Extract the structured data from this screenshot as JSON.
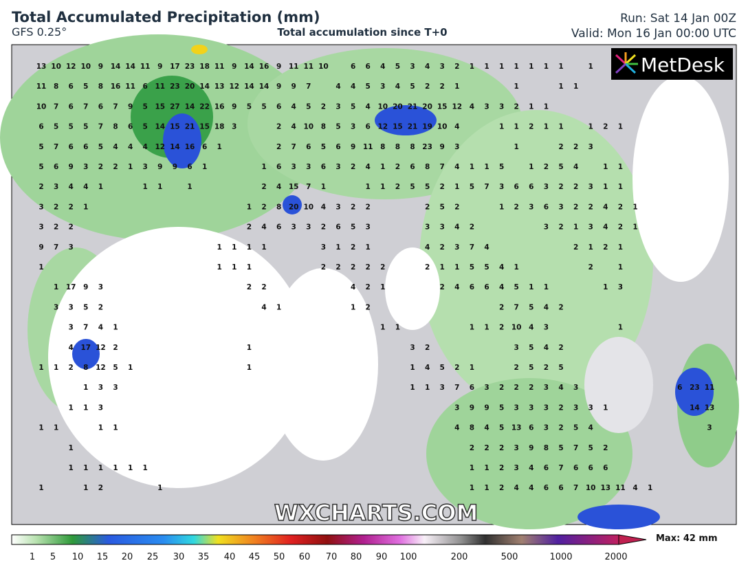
{
  "header": {
    "title": "Total Accumulated Precipitation (mm)",
    "model": "GFS 0.25°",
    "subtitle": "Total accumulation since T+0",
    "run": "Run: Sat 14 Jan 00Z",
    "valid": "Valid: Mon 16 Jan 00:00 UTC"
  },
  "logo": "MetDesk",
  "watermark": "WXCHARTS.COM",
  "grid_values": [
    [
      13,
      10,
      12,
      10,
      9,
      14,
      14,
      11,
      9,
      17,
      23,
      18,
      11,
      9,
      14,
      16,
      9,
      11,
      11,
      10,
      null,
      6,
      6,
      4,
      5,
      3,
      4,
      3,
      2,
      1,
      1,
      1,
      1,
      1,
      1,
      1,
      null,
      1,
      null,
      null,
      null,
      null,
      null,
      null,
      null,
      null
    ],
    [
      11,
      8,
      6,
      5,
      8,
      16,
      11,
      6,
      11,
      23,
      20,
      14,
      13,
      12,
      14,
      14,
      9,
      9,
      7,
      null,
      4,
      4,
      5,
      3,
      4,
      5,
      2,
      2,
      1,
      null,
      null,
      null,
      1,
      null,
      null,
      1,
      1,
      null,
      null,
      null,
      null,
      null,
      null,
      null,
      null,
      null
    ],
    [
      10,
      7,
      6,
      7,
      6,
      7,
      9,
      5,
      15,
      27,
      14,
      22,
      16,
      9,
      5,
      5,
      6,
      4,
      5,
      2,
      3,
      5,
      4,
      10,
      20,
      21,
      20,
      15,
      12,
      4,
      3,
      3,
      2,
      1,
      1,
      null,
      null,
      null,
      null,
      null,
      null,
      null,
      null,
      null,
      null,
      null
    ],
    [
      6,
      5,
      5,
      5,
      7,
      8,
      6,
      5,
      14,
      15,
      21,
      15,
      18,
      3,
      null,
      null,
      2,
      4,
      10,
      8,
      5,
      3,
      6,
      12,
      15,
      21,
      19,
      10,
      4,
      null,
      null,
      1,
      1,
      2,
      1,
      1,
      null,
      1,
      2,
      1,
      null,
      null,
      null,
      null,
      null,
      null
    ],
    [
      5,
      7,
      6,
      6,
      5,
      4,
      4,
      4,
      12,
      14,
      16,
      6,
      1,
      null,
      null,
      null,
      2,
      7,
      6,
      5,
      6,
      9,
      11,
      8,
      8,
      8,
      23,
      9,
      3,
      null,
      null,
      null,
      1,
      null,
      null,
      2,
      2,
      3,
      null,
      null,
      null,
      null,
      null,
      null,
      null,
      null
    ],
    [
      5,
      6,
      9,
      3,
      2,
      2,
      1,
      3,
      9,
      9,
      6,
      1,
      null,
      null,
      null,
      1,
      6,
      3,
      3,
      6,
      3,
      2,
      4,
      1,
      2,
      6,
      8,
      7,
      4,
      1,
      1,
      5,
      null,
      1,
      2,
      5,
      4,
      null,
      1,
      1,
      null,
      null,
      null,
      null,
      null,
      null
    ],
    [
      2,
      3,
      4,
      4,
      1,
      null,
      null,
      1,
      1,
      null,
      1,
      null,
      null,
      null,
      null,
      2,
      4,
      15,
      7,
      1,
      null,
      null,
      1,
      1,
      2,
      5,
      5,
      2,
      1,
      5,
      7,
      3,
      6,
      6,
      3,
      2,
      2,
      3,
      1,
      1,
      null,
      null,
      null,
      null,
      null,
      null
    ],
    [
      3,
      2,
      2,
      1,
      null,
      null,
      null,
      null,
      null,
      null,
      null,
      null,
      null,
      null,
      1,
      2,
      8,
      20,
      10,
      4,
      3,
      2,
      2,
      null,
      null,
      null,
      2,
      5,
      2,
      null,
      null,
      1,
      2,
      3,
      6,
      3,
      2,
      2,
      4,
      2,
      1,
      null,
      null,
      null,
      null,
      null
    ],
    [
      3,
      2,
      2,
      null,
      null,
      null,
      null,
      null,
      null,
      null,
      null,
      null,
      null,
      null,
      2,
      4,
      6,
      3,
      3,
      2,
      6,
      5,
      3,
      null,
      null,
      null,
      3,
      3,
      4,
      2,
      null,
      null,
      null,
      null,
      3,
      2,
      1,
      3,
      4,
      2,
      1,
      null,
      null,
      null,
      null,
      null
    ],
    [
      9,
      7,
      3,
      null,
      null,
      null,
      null,
      null,
      null,
      null,
      null,
      null,
      1,
      1,
      1,
      1,
      null,
      null,
      null,
      3,
      1,
      2,
      1,
      null,
      null,
      null,
      4,
      2,
      3,
      7,
      4,
      null,
      null,
      null,
      null,
      null,
      2,
      1,
      2,
      1,
      null,
      null,
      null,
      null,
      null,
      null
    ],
    [
      1,
      null,
      null,
      null,
      null,
      null,
      null,
      null,
      null,
      null,
      null,
      null,
      1,
      1,
      1,
      null,
      null,
      null,
      null,
      2,
      2,
      2,
      2,
      2,
      null,
      null,
      2,
      1,
      1,
      5,
      5,
      4,
      1,
      null,
      null,
      null,
      null,
      2,
      null,
      1,
      null,
      null,
      null,
      null,
      null,
      null
    ],
    [
      null,
      1,
      17,
      9,
      3,
      null,
      null,
      null,
      null,
      null,
      null,
      null,
      null,
      null,
      2,
      2,
      null,
      null,
      null,
      null,
      null,
      4,
      2,
      1,
      null,
      null,
      null,
      2,
      4,
      6,
      6,
      4,
      5,
      1,
      1,
      null,
      null,
      null,
      1,
      3,
      null,
      null,
      null,
      null,
      null,
      null
    ],
    [
      null,
      3,
      3,
      5,
      2,
      null,
      null,
      null,
      null,
      null,
      null,
      null,
      null,
      null,
      null,
      4,
      1,
      null,
      null,
      null,
      null,
      1,
      2,
      null,
      null,
      null,
      null,
      null,
      null,
      null,
      null,
      2,
      7,
      5,
      4,
      2,
      null,
      null,
      null,
      null,
      null,
      null,
      null,
      null,
      null,
      null
    ],
    [
      null,
      null,
      3,
      7,
      4,
      1,
      null,
      null,
      null,
      null,
      null,
      null,
      null,
      null,
      null,
      null,
      null,
      null,
      null,
      null,
      null,
      null,
      null,
      1,
      1,
      null,
      null,
      null,
      null,
      1,
      1,
      2,
      10,
      4,
      3,
      null,
      null,
      null,
      null,
      1,
      null,
      null,
      null,
      null,
      null,
      null
    ],
    [
      null,
      null,
      4,
      17,
      12,
      2,
      null,
      null,
      null,
      null,
      null,
      null,
      null,
      null,
      1,
      null,
      null,
      null,
      null,
      null,
      null,
      null,
      null,
      null,
      null,
      3,
      2,
      null,
      null,
      null,
      null,
      null,
      3,
      5,
      4,
      2,
      null,
      null,
      null,
      null,
      null,
      null,
      null,
      null,
      null,
      null
    ],
    [
      1,
      1,
      2,
      8,
      12,
      5,
      1,
      null,
      null,
      null,
      null,
      null,
      null,
      null,
      1,
      null,
      null,
      null,
      null,
      null,
      null,
      null,
      null,
      null,
      null,
      1,
      4,
      5,
      2,
      1,
      null,
      null,
      2,
      5,
      2,
      5,
      null,
      null,
      null,
      null,
      null,
      null,
      null,
      null,
      null,
      null
    ],
    [
      null,
      null,
      null,
      1,
      3,
      3,
      null,
      null,
      null,
      null,
      null,
      null,
      null,
      null,
      null,
      null,
      null,
      null,
      null,
      null,
      null,
      null,
      null,
      null,
      null,
      1,
      1,
      3,
      7,
      6,
      3,
      2,
      2,
      2,
      3,
      4,
      3,
      null,
      null,
      null,
      null,
      null,
      null,
      6,
      23,
      11
    ],
    [
      null,
      null,
      1,
      1,
      3,
      null,
      null,
      null,
      null,
      null,
      null,
      null,
      null,
      null,
      null,
      null,
      null,
      null,
      null,
      null,
      null,
      null,
      null,
      null,
      null,
      null,
      null,
      null,
      3,
      9,
      9,
      5,
      3,
      3,
      3,
      2,
      3,
      3,
      1,
      null,
      null,
      null,
      null,
      null,
      14,
      13
    ],
    [
      1,
      1,
      null,
      null,
      1,
      1,
      null,
      null,
      null,
      null,
      null,
      null,
      null,
      null,
      null,
      null,
      null,
      null,
      null,
      null,
      null,
      null,
      null,
      null,
      null,
      null,
      null,
      null,
      4,
      8,
      4,
      5,
      13,
      6,
      3,
      2,
      5,
      4,
      null,
      null,
      null,
      null,
      null,
      null,
      null,
      3
    ],
    [
      null,
      null,
      1,
      null,
      null,
      null,
      null,
      null,
      null,
      null,
      null,
      null,
      null,
      null,
      null,
      null,
      null,
      null,
      null,
      null,
      null,
      null,
      null,
      null,
      null,
      null,
      null,
      null,
      null,
      2,
      2,
      2,
      3,
      9,
      8,
      5,
      7,
      5,
      2,
      null,
      null,
      null,
      null,
      null,
      null,
      null
    ],
    [
      null,
      null,
      1,
      1,
      1,
      1,
      1,
      1,
      null,
      null,
      null,
      null,
      null,
      null,
      null,
      null,
      null,
      null,
      null,
      null,
      null,
      null,
      null,
      null,
      null,
      null,
      null,
      null,
      null,
      1,
      1,
      2,
      3,
      4,
      6,
      7,
      6,
      6,
      6,
      null,
      null,
      null,
      null,
      null,
      null,
      null
    ],
    [
      1,
      null,
      null,
      1,
      2,
      null,
      null,
      null,
      1,
      null,
      null,
      null,
      null,
      null,
      null,
      null,
      null,
      null,
      null,
      null,
      null,
      null,
      null,
      null,
      null,
      null,
      null,
      null,
      null,
      1,
      1,
      2,
      4,
      4,
      6,
      6,
      7,
      10,
      13,
      11,
      4,
      1,
      null,
      null,
      null,
      null
    ]
  ],
  "colorbar": {
    "ticks": [
      1,
      5,
      10,
      15,
      20,
      25,
      30,
      35,
      40,
      45,
      50,
      60,
      70,
      80,
      90,
      100,
      200,
      500,
      1000,
      2000
    ],
    "max_label": "Max: 42 mm"
  }
}
